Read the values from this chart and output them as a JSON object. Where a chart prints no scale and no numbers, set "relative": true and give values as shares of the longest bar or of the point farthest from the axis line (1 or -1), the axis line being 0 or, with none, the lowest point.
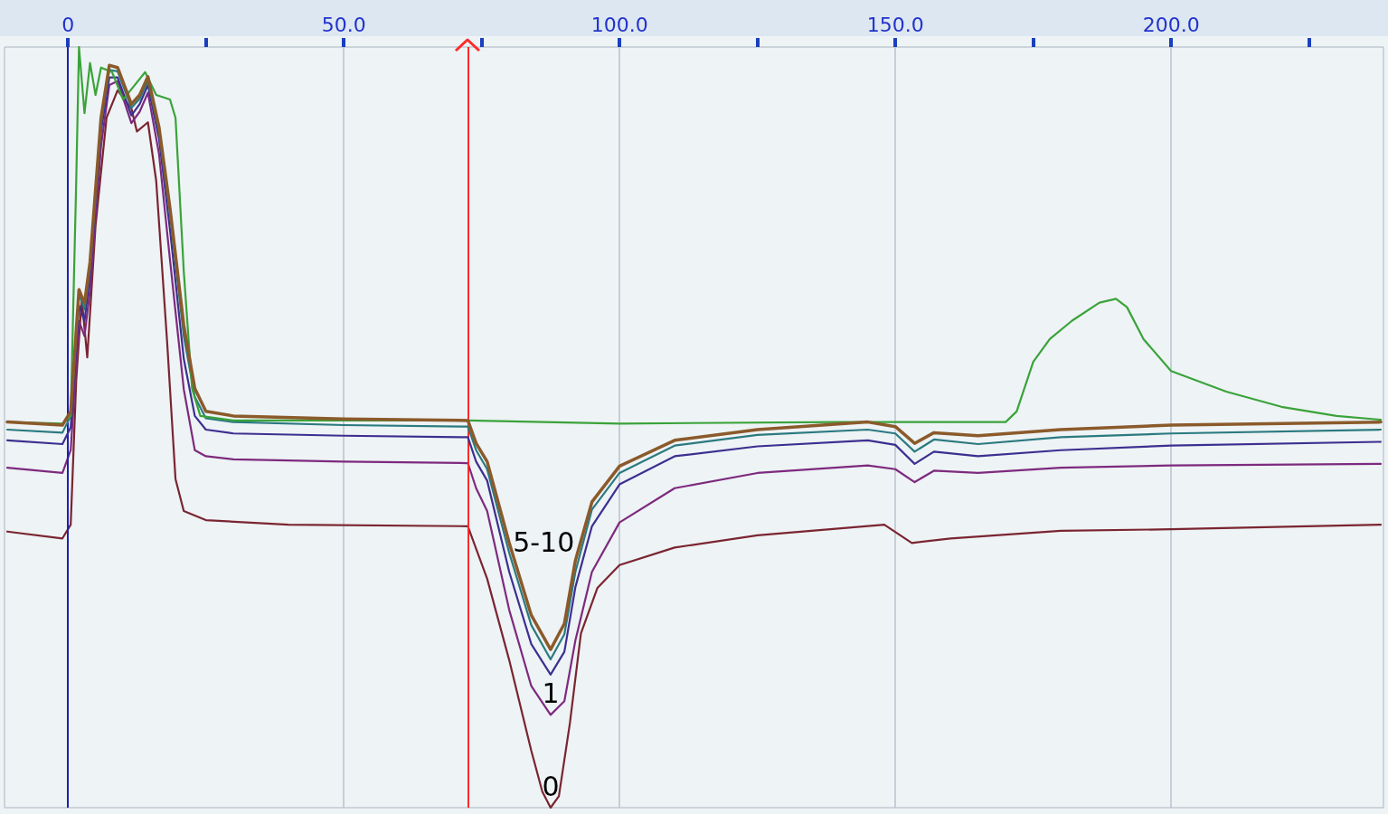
{
  "chart_data": {
    "type": "line",
    "relative": true,
    "xlim": [
      -11.5,
      238.5
    ],
    "xticks": [
      0,
      {
        "value": 25,
        "label": null
      },
      {
        "value": 50,
        "label": "50.0"
      },
      {
        "value": 75,
        "label": null
      },
      {
        "value": 100,
        "label": "100.0"
      },
      {
        "value": 125,
        "label": null
      },
      {
        "value": 150,
        "label": "150.0"
      },
      {
        "value": 175,
        "label": null
      },
      {
        "value": 200,
        "label": "200.0"
      },
      {
        "value": 225,
        "label": null
      }
    ],
    "grid": "x",
    "marker": "none",
    "line_style": "solid",
    "tick_labels": "x",
    "ref_lines": [
      {
        "axis": "x",
        "value": 0,
        "color": "#1f1fb0"
      },
      {
        "axis": "x",
        "value": 72.5,
        "color": "#ff2a2a"
      }
    ],
    "series": [
      {
        "name": "0",
        "color": "#7a2531",
        "x": [
          -11,
          -1,
          0.5,
          1.5,
          2.5,
          3.5,
          5,
          7,
          9,
          11.5,
          12.5,
          14.5,
          16,
          18,
          19.5,
          21,
          25,
          40,
          72.5,
          76,
          80,
          84,
          86,
          87.5,
          89,
          91,
          93,
          96,
          100,
          110,
          125,
          148,
          153,
          160,
          180,
          200,
          238
        ],
        "values": [
          0.363,
          0.354,
          0.372,
          0.562,
          0.669,
          0.592,
          0.765,
          0.907,
          0.943,
          0.919,
          0.889,
          0.901,
          0.824,
          0.61,
          0.432,
          0.39,
          0.378,
          0.372,
          0.37,
          0.301,
          0.194,
          0.075,
          0.021,
          0,
          0.015,
          0.111,
          0.229,
          0.289,
          0.319,
          0.342,
          0.358,
          0.372,
          0.348,
          0.354,
          0.364,
          0.366,
          0.372
        ]
      },
      {
        "name": "1",
        "color": "#7d2a7e",
        "x": [
          -11,
          -1,
          0.5,
          2,
          3,
          4,
          6,
          7.5,
          9,
          11.5,
          13,
          14.5,
          16.5,
          18.5,
          21,
          23,
          25,
          30,
          50,
          72.5,
          74,
          76,
          80,
          84,
          87.5,
          90,
          92,
          95,
          100,
          110,
          125,
          145,
          150,
          153.5,
          157,
          165,
          180,
          200,
          238
        ],
        "values": [
          0.447,
          0.44,
          0.47,
          0.64,
          0.62,
          0.68,
          0.87,
          0.95,
          0.955,
          0.9,
          0.915,
          0.94,
          0.86,
          0.72,
          0.55,
          0.47,
          0.462,
          0.458,
          0.455,
          0.453,
          0.42,
          0.39,
          0.26,
          0.16,
          0.122,
          0.14,
          0.22,
          0.31,
          0.375,
          0.42,
          0.44,
          0.45,
          0.445,
          0.428,
          0.443,
          0.44,
          0.447,
          0.45,
          0.452
        ]
      },
      {
        "color": "#3d2f90",
        "x": [
          -11,
          -1,
          0.5,
          2,
          3,
          4,
          6,
          7.5,
          9,
          11.5,
          13,
          14.5,
          16.5,
          18.5,
          21,
          23,
          25,
          30,
          50,
          72.5,
          74,
          76,
          80,
          84,
          87.5,
          90,
          92,
          95,
          100,
          110,
          125,
          145,
          150,
          153.5,
          157,
          165,
          180,
          200,
          238
        ],
        "values": [
          0.483,
          0.478,
          0.5,
          0.66,
          0.64,
          0.7,
          0.89,
          0.96,
          0.96,
          0.91,
          0.925,
          0.95,
          0.88,
          0.76,
          0.59,
          0.515,
          0.497,
          0.492,
          0.489,
          0.487,
          0.455,
          0.43,
          0.31,
          0.215,
          0.175,
          0.205,
          0.29,
          0.37,
          0.425,
          0.462,
          0.475,
          0.483,
          0.477,
          0.452,
          0.468,
          0.462,
          0.47,
          0.476,
          0.481
        ]
      },
      {
        "color": "#2b7a80",
        "x": [
          -11,
          -1,
          0.5,
          2,
          3,
          4,
          6,
          7.5,
          9,
          11.5,
          13,
          14.5,
          16.5,
          18.5,
          21,
          23,
          25,
          30,
          50,
          72.5,
          74,
          76,
          80,
          84,
          87.5,
          90,
          92,
          95,
          100,
          110,
          125,
          145,
          150,
          153.5,
          157,
          165,
          180,
          200,
          238
        ],
        "values": [
          0.497,
          0.493,
          0.515,
          0.675,
          0.655,
          0.71,
          0.9,
          0.97,
          0.968,
          0.92,
          0.932,
          0.955,
          0.89,
          0.78,
          0.62,
          0.54,
          0.512,
          0.507,
          0.503,
          0.501,
          0.47,
          0.445,
          0.335,
          0.24,
          0.195,
          0.228,
          0.31,
          0.392,
          0.44,
          0.476,
          0.49,
          0.497,
          0.492,
          0.468,
          0.484,
          0.478,
          0.487,
          0.492,
          0.497
        ]
      },
      {
        "color": "#3aa33a",
        "x": [
          -11,
          -1,
          0.5,
          1.5,
          2,
          3,
          4,
          5,
          6,
          8,
          10,
          12,
          14,
          16,
          18.5,
          19.5,
          21,
          22.5,
          24,
          30,
          72.5,
          100,
          140,
          170,
          172,
          175,
          178,
          182,
          187,
          190,
          192,
          195,
          200,
          210,
          220,
          230,
          238
        ],
        "values": [
          0.507,
          0.505,
          0.515,
          0.824,
          1,
          0.913,
          0.979,
          0.937,
          0.973,
          0.967,
          0.931,
          0.949,
          0.967,
          0.937,
          0.931,
          0.907,
          0.705,
          0.551,
          0.515,
          0.509,
          0.509,
          0.505,
          0.507,
          0.507,
          0.521,
          0.586,
          0.616,
          0.64,
          0.664,
          0.669,
          0.658,
          0.616,
          0.574,
          0.547,
          0.527,
          0.515,
          0.51
        ]
      },
      {
        "name": "5-10",
        "color": "#8b5a2b",
        "x": [
          -11,
          -1,
          0.5,
          2,
          3,
          4,
          6,
          7.5,
          9,
          11.5,
          13,
          14.5,
          16.5,
          18.5,
          21,
          23,
          25,
          30,
          50,
          72.5,
          74,
          76,
          80,
          84,
          87.5,
          90,
          92,
          95,
          100,
          110,
          125,
          145,
          150,
          153.5,
          157,
          165,
          180,
          200,
          238
        ],
        "values": [
          0.507,
          0.503,
          0.521,
          0.681,
          0.663,
          0.717,
          0.907,
          0.976,
          0.973,
          0.925,
          0.937,
          0.961,
          0.895,
          0.788,
          0.634,
          0.551,
          0.521,
          0.515,
          0.511,
          0.509,
          0.479,
          0.455,
          0.348,
          0.253,
          0.208,
          0.242,
          0.325,
          0.402,
          0.449,
          0.483,
          0.497,
          0.507,
          0.501,
          0.479,
          0.493,
          0.489,
          0.497,
          0.503,
          0.507
        ]
      }
    ]
  }
}
